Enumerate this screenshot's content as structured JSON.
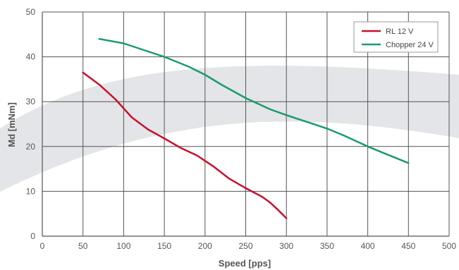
{
  "chart_data": {
    "type": "line",
    "xlabel": "Speed [pps]",
    "ylabel": "Md [mNm]",
    "xlim": [
      0,
      500
    ],
    "ylim": [
      0,
      50
    ],
    "x_ticks": [
      "0",
      "50",
      "100",
      "150",
      "200",
      "250",
      "300",
      "350",
      "400",
      "450",
      "500"
    ],
    "y_ticks": [
      "0",
      "10",
      "20",
      "30",
      "40",
      "50"
    ],
    "grid": true,
    "legend_position": "top-right",
    "series": [
      {
        "name": "RL 12 V",
        "color": "#c8102e",
        "x": [
          50,
          70,
          90,
          110,
          130,
          150,
          170,
          190,
          210,
          230,
          250,
          270,
          280,
          290,
          300
        ],
        "y": [
          36.5,
          33.8,
          30.5,
          26.5,
          23.8,
          21.8,
          19.7,
          18.0,
          15.6,
          12.8,
          10.7,
          8.8,
          7.5,
          5.8,
          4.0
        ]
      },
      {
        "name": "Chopper 24 V",
        "color": "#1a9b6c",
        "x": [
          70,
          100,
          130,
          150,
          180,
          200,
          220,
          250,
          280,
          300,
          330,
          350,
          370,
          400,
          420,
          450
        ],
        "y": [
          44.0,
          43.0,
          41.2,
          40.0,
          37.8,
          36.0,
          33.8,
          30.8,
          28.3,
          27.0,
          25.2,
          24.0,
          22.5,
          20.0,
          18.5,
          16.3
        ]
      }
    ]
  }
}
